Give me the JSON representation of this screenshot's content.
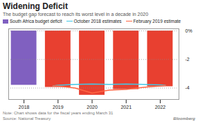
{
  "chart_data": {
    "type": "bar",
    "title": "Widening Deficit",
    "subtitle": "The budget gap forecast to reach its worst level in a decade in 2020",
    "annotations": [
      "Note: Chart shows data for the fiscal years ending March 31",
      "Source: National Treasury",
      "Bloomberg"
    ],
    "x": [
      2018,
      2019,
      2020,
      2021,
      2022
    ],
    "xlim": [
      2017.55,
      2022.55
    ],
    "xticks": [
      2018,
      2019,
      2020,
      2021,
      2022
    ],
    "ylim": [
      -4.8,
      0.15
    ],
    "yticks": [
      {
        "value": 0,
        "label": "0%"
      },
      -2,
      -4
    ],
    "grid": true,
    "legend": "upper left",
    "series": [
      {
        "name": "South Africa budget deficit",
        "type": "bar",
        "colors": [
          "#8060c0",
          "#e84030",
          "#e84030",
          "#e84030",
          "#e84030"
        ],
        "values": [
          -3.8,
          -3.95,
          -4.5,
          -4.1,
          -3.9
        ]
      },
      {
        "name": "October 2018 estimates",
        "type": "line",
        "color": "#40c8e8",
        "x": [
          2018.85,
          2019.0,
          2019.5,
          2020.0,
          2020.5,
          2021.0,
          2021.5,
          2022.0,
          2022.15
        ],
        "values": [
          -3.85,
          -3.8,
          -3.75,
          -3.72,
          -3.75,
          -3.72,
          -3.75,
          -3.78,
          -3.8
        ]
      },
      {
        "name": "February 2019 estimate",
        "type": "line",
        "color": "#ff6644",
        "x": [
          2018.85,
          2019.0,
          2019.5,
          2020.0,
          2020.5,
          2021.0,
          2021.5,
          2022.0,
          2022.15
        ],
        "values": [
          -3.85,
          -3.85,
          -4.0,
          -4.35,
          -4.15,
          -4.1,
          -3.95,
          -3.85,
          -3.82
        ]
      }
    ]
  }
}
